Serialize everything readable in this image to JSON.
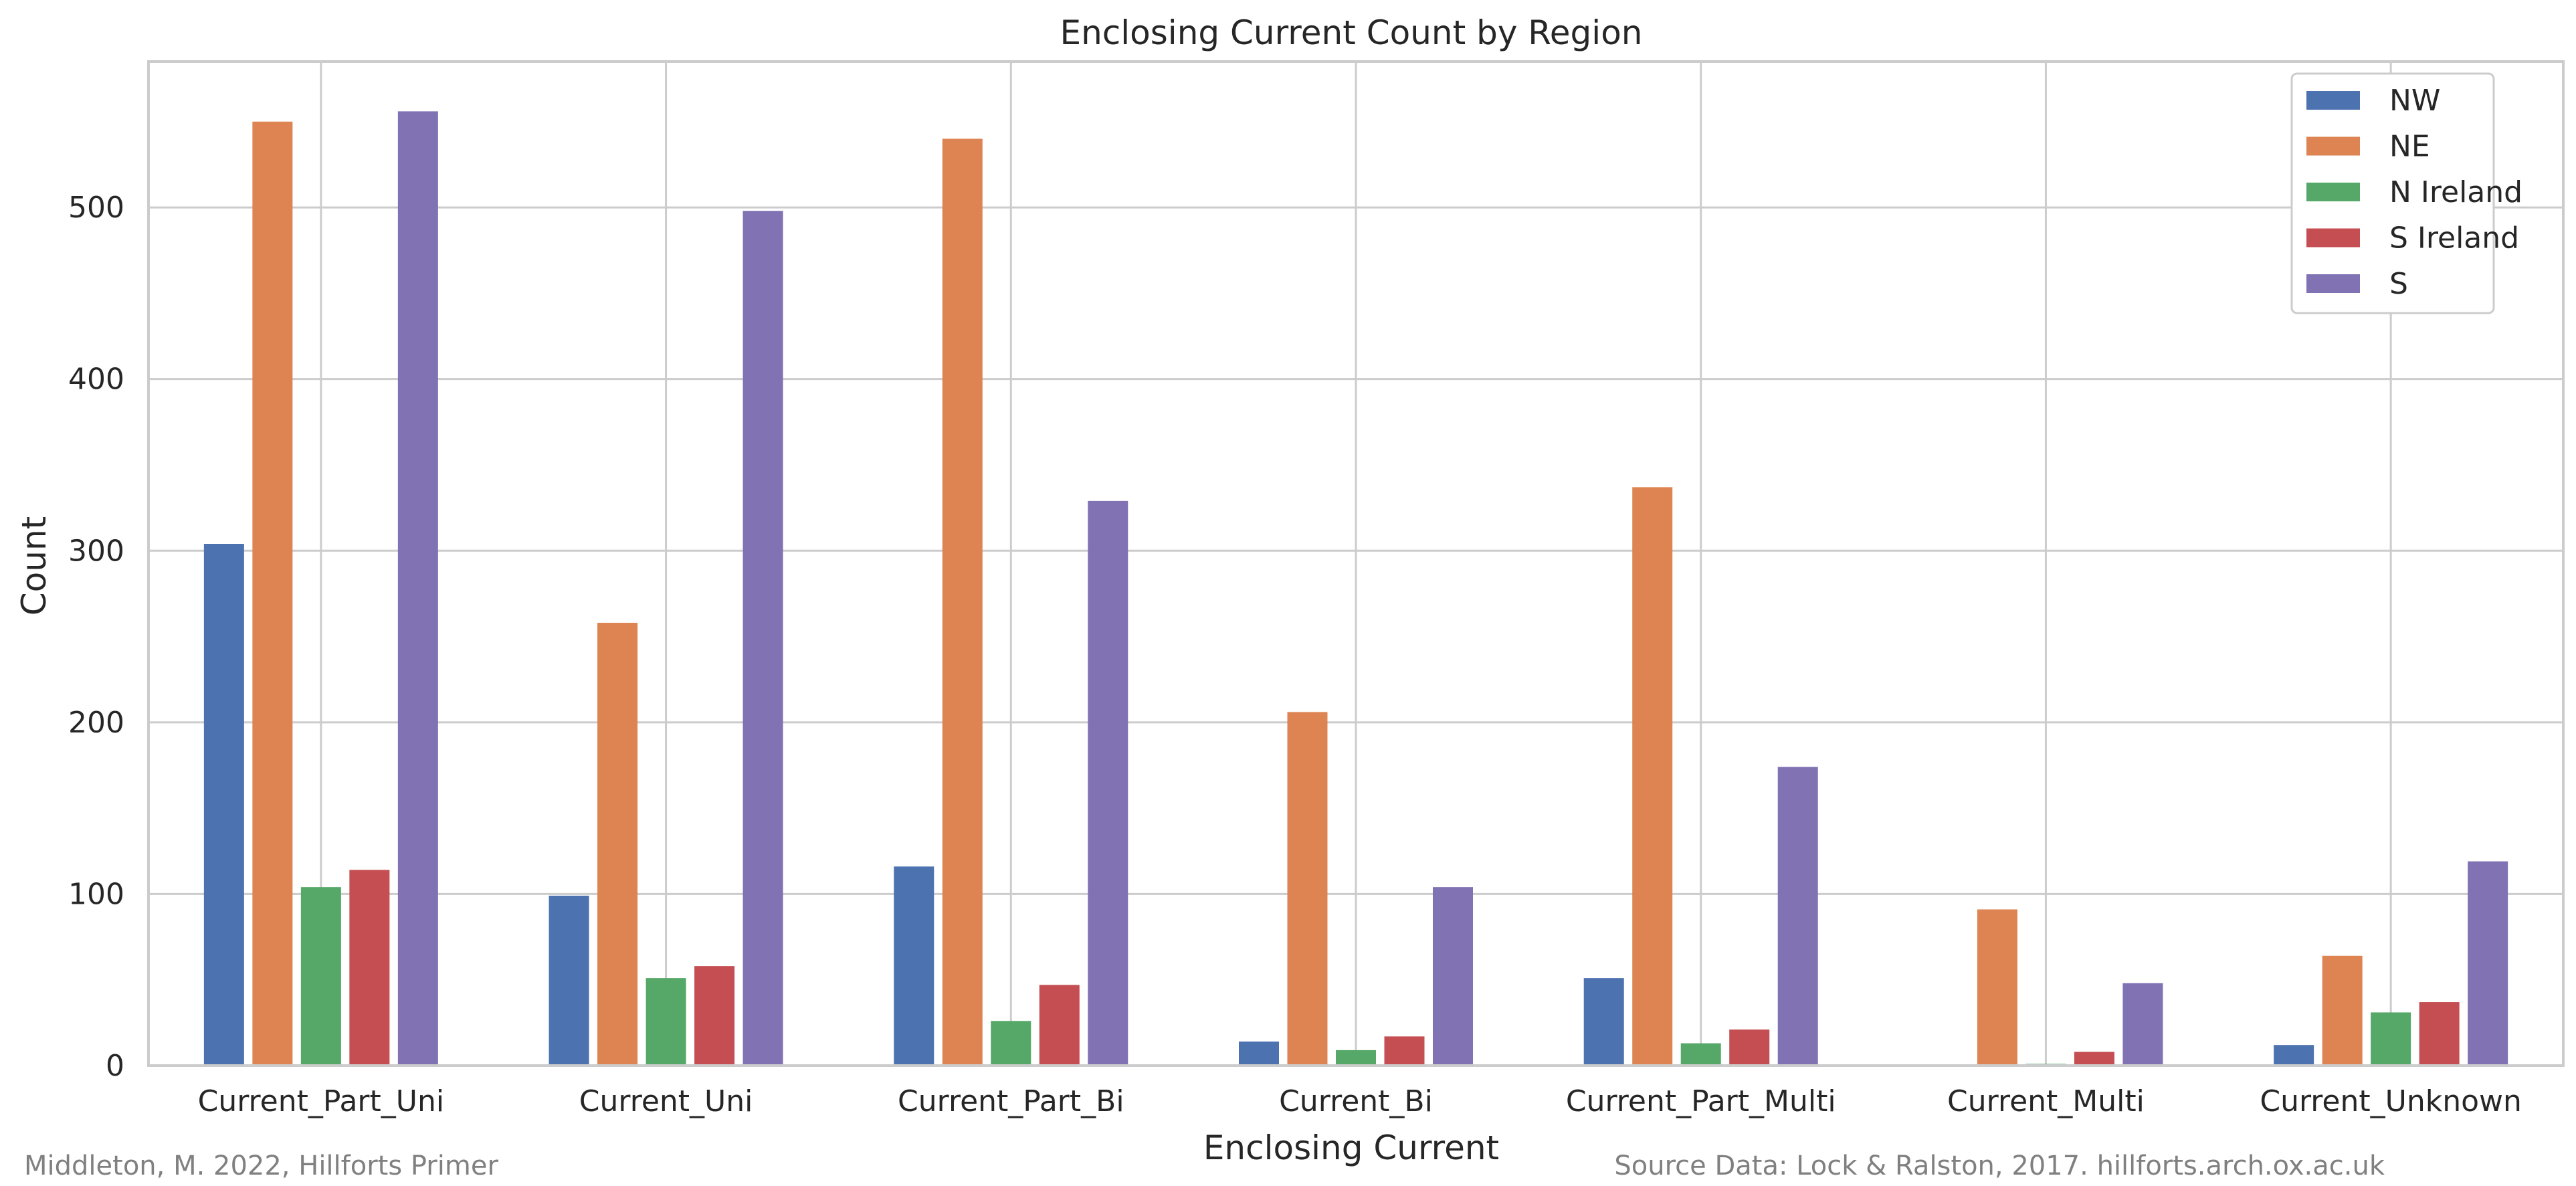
{
  "footer": {
    "left": "Middleton, M. 2022, Hillforts Primer",
    "right": "Source Data: Lock & Ralston, 2017. hillforts.arch.ox.ac.uk"
  },
  "chart_data": {
    "type": "bar",
    "title": "Enclosing Current Count by Region",
    "xlabel": "Enclosing Current",
    "ylabel": "Count",
    "ylim": [
      0,
      585
    ],
    "yticks": [
      0,
      100,
      200,
      300,
      400,
      500
    ],
    "grid": true,
    "legend_position": "top-right",
    "categories": [
      "Current_Part_Uni",
      "Current_Uni",
      "Current_Part_Bi",
      "Current_Bi",
      "Current_Part_Multi",
      "Current_Multi",
      "Current_Unknown"
    ],
    "series": [
      {
        "name": "NW",
        "color": "#4c72b0",
        "values": [
          304,
          99,
          116,
          14,
          51,
          0,
          12
        ]
      },
      {
        "name": "NE",
        "color": "#dd8452",
        "values": [
          550,
          258,
          540,
          206,
          337,
          91,
          64
        ]
      },
      {
        "name": "N Ireland",
        "color": "#55a868",
        "values": [
          104,
          51,
          26,
          9,
          13,
          1,
          31
        ]
      },
      {
        "name": "S Ireland",
        "color": "#c44e52",
        "values": [
          114,
          58,
          47,
          17,
          21,
          8,
          37
        ]
      },
      {
        "name": "S",
        "color": "#8172b3",
        "values": [
          556,
          498,
          329,
          104,
          174,
          48,
          119
        ]
      }
    ]
  }
}
